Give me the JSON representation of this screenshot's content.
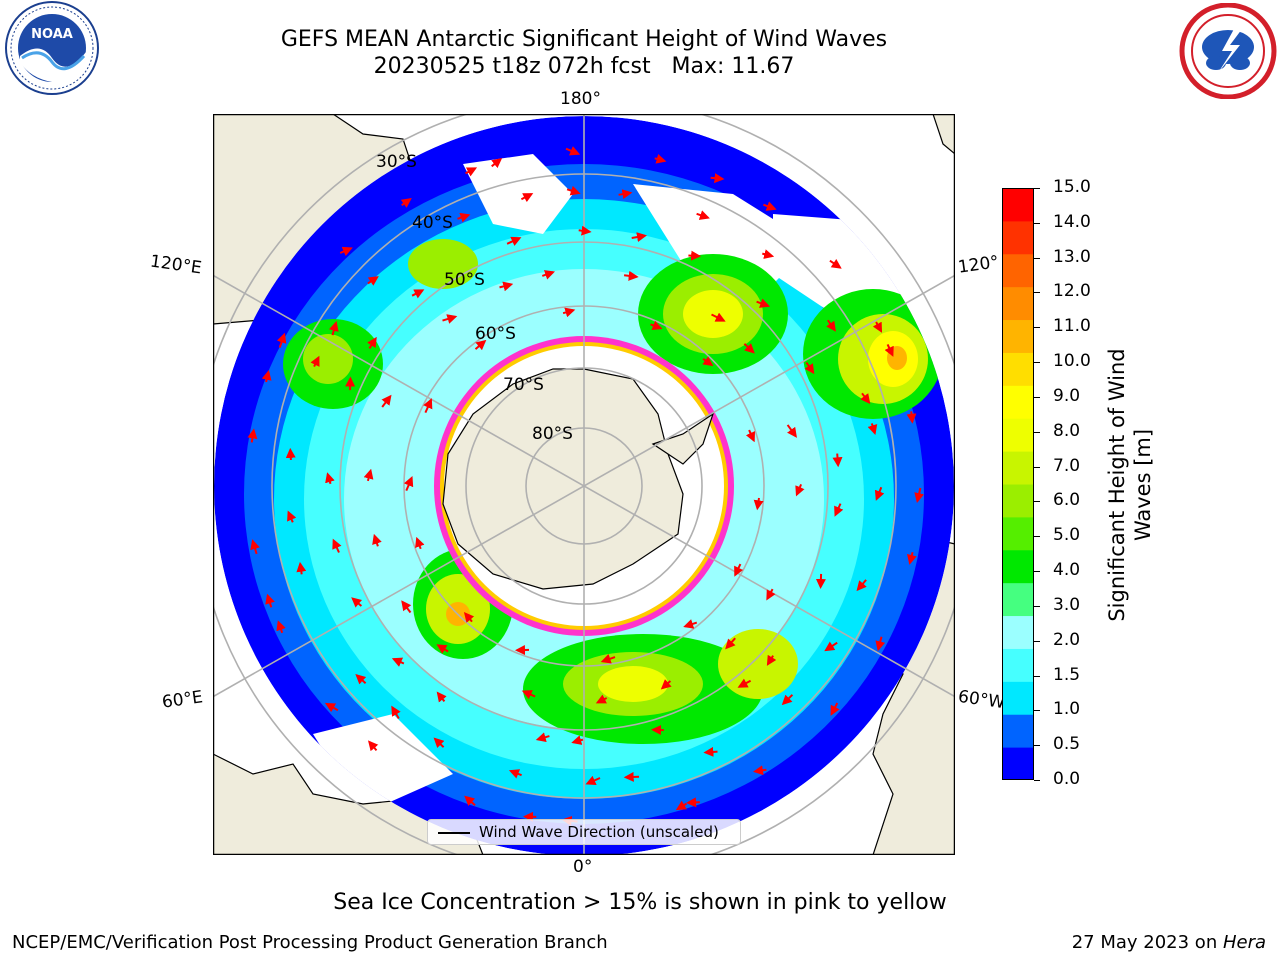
{
  "title": {
    "line1": "GEFS MEAN Antarctic Significant Height of Wind Waves",
    "line2": "20230525 t18z 072h fcst   Max: 11.67"
  },
  "logos": {
    "left": {
      "icon": "noaa-logo-icon",
      "text": "NOAA"
    },
    "right": {
      "icon": "national-weather-service-logo-icon"
    }
  },
  "map": {
    "projection": "south-polar-stereographic",
    "meridian_labels": {
      "top": "180°",
      "bottom": "0°",
      "upper_left": "120°E",
      "upper_right": "120°",
      "lower_left": "60°E",
      "lower_right": "60°W"
    },
    "parallel_labels": [
      "30°S",
      "40°S",
      "50°S",
      "60°S",
      "70°S",
      "80°S"
    ],
    "colors": {
      "land": "#efecdc",
      "ocean_no_data": "#ffffff",
      "coast": "#000000",
      "graticule": "#b0b0b0",
      "arrow": "#ff0000",
      "ice_edge_pink": "#ff33cc",
      "ice_edge_yellow": "#ffcc00"
    },
    "arrow_icon": "wind-wave-direction-arrow-icon"
  },
  "legend": {
    "label": "Wind Wave Direction (unscaled)"
  },
  "colorbar": {
    "title_line1": "Significant Height of Wind",
    "title_line2": "Waves [m]",
    "ticks": [
      "0.0",
      "0.5",
      "1.0",
      "1.5",
      "2.0",
      "3.0",
      "4.0",
      "5.0",
      "6.0",
      "7.0",
      "8.0",
      "9.0",
      "10.0",
      "11.0",
      "12.0",
      "13.0",
      "14.0",
      "15.0"
    ],
    "colors": [
      "#0000ff",
      "#0064ff",
      "#00e8ff",
      "#46ffff",
      "#9bffff",
      "#45ff80",
      "#00e800",
      "#55ee00",
      "#9bee00",
      "#c8f500",
      "#eeff00",
      "#ffff00",
      "#ffde00",
      "#ffb400",
      "#ff8c00",
      "#ff6400",
      "#ff3200",
      "#ff0000"
    ]
  },
  "ice_note": "Sea Ice Concentration > 15% is shown in pink to yellow",
  "footer": {
    "left": "NCEP/EMC/Verification Post Processing Product Generation Branch",
    "right_date": "27 May 2023 on ",
    "right_host": "Hera"
  }
}
